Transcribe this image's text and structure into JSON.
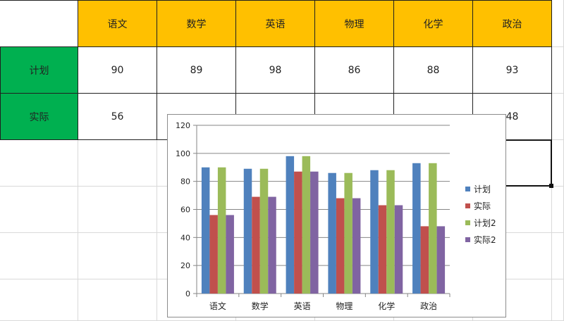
{
  "table": {
    "headers": [
      "语文",
      "数学",
      "英语",
      "物理",
      "化学",
      "政治"
    ],
    "rows": [
      {
        "label": "计划",
        "values": [
          "90",
          "89",
          "98",
          "86",
          "88",
          "93"
        ]
      },
      {
        "label": "实际",
        "values": [
          "56",
          "",
          "",
          "",
          "",
          "48"
        ]
      }
    ]
  },
  "colors": {
    "header_fill": "#ffc000",
    "row_header_fill": "#00b050"
  },
  "chart_data": {
    "type": "bar",
    "categories": [
      "语文",
      "数学",
      "英语",
      "物理",
      "化学",
      "政治"
    ],
    "series": [
      {
        "name": "计划",
        "values": [
          90,
          89,
          98,
          86,
          88,
          93
        ],
        "color": "#4f81bd"
      },
      {
        "name": "实际",
        "values": [
          56,
          69,
          87,
          68,
          63,
          48
        ],
        "color": "#c0504d"
      },
      {
        "name": "计划2",
        "values": [
          90,
          89,
          98,
          86,
          88,
          93
        ],
        "color": "#9bbb59"
      },
      {
        "name": "实际2",
        "values": [
          56,
          69,
          87,
          68,
          63,
          48
        ],
        "color": "#8064a2"
      }
    ],
    "ylim": [
      0,
      120
    ],
    "yticks": [
      "0",
      "20",
      "40",
      "60",
      "80",
      "100",
      "120"
    ],
    "grid": true,
    "legend": "right"
  }
}
